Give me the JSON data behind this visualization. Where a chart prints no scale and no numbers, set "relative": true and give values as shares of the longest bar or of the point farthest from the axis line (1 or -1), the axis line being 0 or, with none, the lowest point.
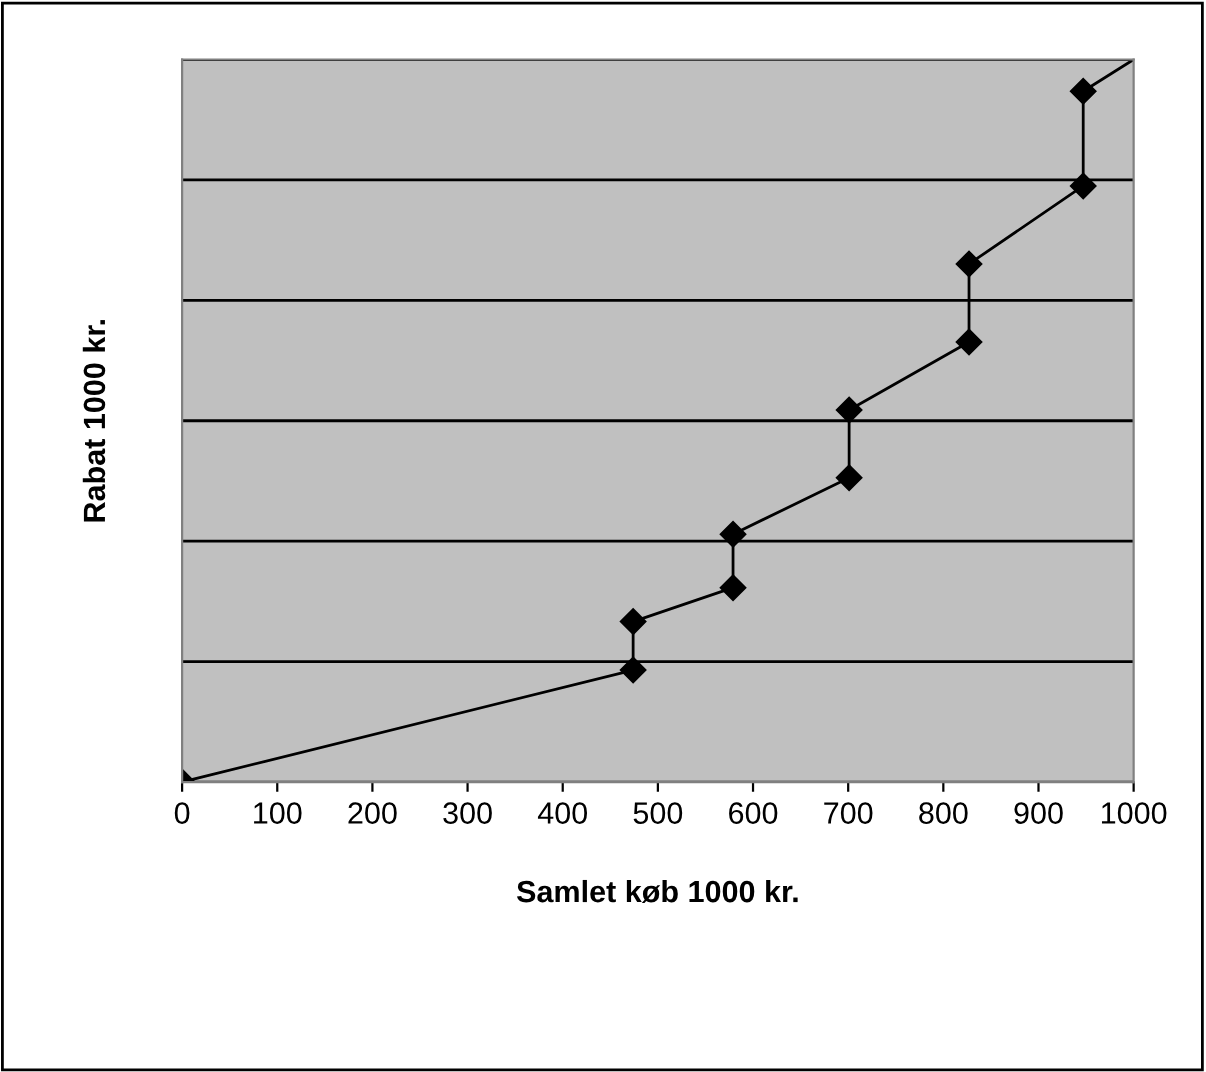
{
  "chart_data": {
    "type": "line",
    "relative": true,
    "xlabel": "Samlet køb 1000 kr.",
    "ylabel": "Rabat 1000 kr.",
    "xlim": [
      0,
      1000
    ],
    "xticks": [
      0,
      100,
      200,
      300,
      400,
      500,
      600,
      700,
      800,
      900,
      1000
    ],
    "grid": "y",
    "marker": "diamond",
    "line_style": "solid",
    "series": [
      {
        "color": "#000000",
        "x": [
          0,
          474,
          474,
          579,
          579,
          701,
          701,
          827,
          827,
          947,
          947
        ],
        "values": [
          0,
          0.155,
          0.222,
          0.269,
          0.343,
          0.421,
          0.515,
          0.609,
          0.717,
          0.825,
          0.956
        ]
      },
      {
        "color": "#000000",
        "marker": "none",
        "x": [
          947,
          1000
        ],
        "values": [
          0.956,
          1
        ]
      }
    ]
  }
}
